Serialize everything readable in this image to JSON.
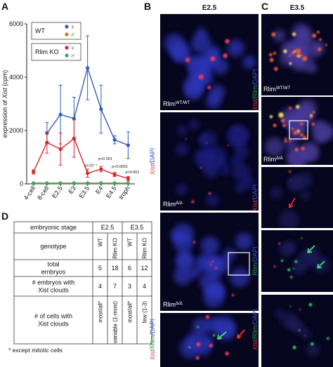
{
  "chart_data": {
    "type": "line",
    "panel": "A",
    "ylabel": [
      "expression of ",
      "Xist",
      " (cpm)"
    ],
    "categories": [
      "4-cell",
      "8-cell",
      "E2.5",
      "E3",
      "E3.5",
      "E4",
      "E4.5",
      "troph"
    ],
    "ylim": [
      0,
      6000
    ],
    "yticks": [
      0,
      2000,
      4000,
      6000
    ],
    "series": [
      {
        "name": "♀",
        "color": "#2e5fb8",
        "values": [
          null,
          1900,
          2600,
          2450,
          4350,
          2800,
          1650,
          1450
        ],
        "errors": [
          null,
          400,
          1100,
          800,
          1200,
          900,
          150,
          500
        ]
      },
      {
        "name": "♂",
        "color": "#c8762a",
        "values": [
          30,
          30,
          30,
          30,
          30,
          30,
          30,
          30
        ],
        "errors": [
          null,
          null,
          null,
          null,
          null,
          null,
          null,
          null
        ]
      },
      {
        "name": "♀",
        "color": "#d9262b",
        "values": [
          450,
          1550,
          1300,
          1700,
          400,
          550,
          350,
          200
        ],
        "errors": [
          80,
          400,
          600,
          700,
          150,
          100,
          80,
          80
        ]
      },
      {
        "name": "♂",
        "color": "#2fae5e",
        "values": [
          15,
          15,
          15,
          15,
          15,
          15,
          15,
          15
        ],
        "errors": [
          null,
          null,
          null,
          null,
          null,
          null,
          null,
          null
        ]
      }
    ],
    "legend": [
      {
        "label": "WT",
        "series": [
          0,
          1
        ]
      },
      {
        "label": "Rlim KO",
        "series": [
          2,
          3
        ]
      }
    ],
    "annotations": [
      {
        "text": "p<10⁻⁴",
        "category": 4,
        "value": 650
      },
      {
        "text": "p<0.001",
        "category": 5,
        "value": 900
      },
      {
        "text": "p<0.0001",
        "category": 6,
        "value": 600
      },
      {
        "text": "p<0.001",
        "category": 7,
        "value": 400
      }
    ]
  },
  "panel_b": {
    "label": "B",
    "title": "E2.5",
    "captions": [
      {
        "base": "Rlim",
        "sup": "WT/WT"
      },
      {
        "base": "Rlim",
        "sup": "Δ/Δ"
      },
      {
        "base": "Rlim",
        "sup": "Δ/Δ"
      }
    ],
    "side_labels": [
      [
        {
          "text": "Xist",
          "color": "#e03a3a"
        },
        {
          "text": "/DAPI",
          "color": "#3a4fc8"
        }
      ],
      [
        {
          "text": "Xist",
          "color": "#e03a3a"
        },
        {
          "text": "/Rlim",
          "color": "#2a9a4a"
        },
        {
          "text": "/DAPI",
          "color": "#3a4fc8"
        }
      ]
    ]
  },
  "panel_c": {
    "label": "C",
    "title": "E3.5",
    "captions": [
      {
        "base": "Rlim",
        "sup": "WT/WT"
      },
      {
        "base": "Rlim",
        "sup": "Δ/Δ"
      }
    ],
    "side_labels": [
      [
        {
          "text": "Xist",
          "color": "#e03a3a"
        },
        {
          "text": "/Rlim",
          "color": "#2a9a4a"
        },
        {
          "text": "/DAPI",
          "color": "#3a4fc8"
        }
      ],
      [
        {
          "text": "Xist",
          "color": "#e03a3a"
        },
        {
          "text": "/DAPI",
          "color": "#3a4fc8"
        }
      ],
      [
        {
          "text": "Rlim",
          "color": "#2a9a4a"
        },
        {
          "text": "/DAPI",
          "color": "#3a4fc8"
        }
      ],
      [
        {
          "text": "Xist",
          "color": "#e03a3a"
        },
        {
          "text": "/Rlim",
          "color": "#2a9a4a"
        },
        {
          "text": "/DAPI",
          "color": "#3a4fc8"
        }
      ]
    ]
  },
  "table": {
    "label": "D",
    "header": [
      "embryonic stage",
      "E2.5",
      "E3.5"
    ],
    "rows": [
      {
        "label": [
          "genotype"
        ],
        "cells": [
          "WT",
          "Rlim KO",
          "WT",
          "Rlim KO"
        ]
      },
      {
        "label": [
          "total",
          "embryos"
        ],
        "cells": [
          5,
          18,
          6,
          12
        ]
      },
      {
        "label": [
          "# embryos with",
          "Xist clouds"
        ],
        "cells": [
          4,
          7,
          3,
          4
        ]
      },
      {
        "label": [
          "# of cells with",
          "Xist clouds"
        ],
        "cells": [
          "most/all*",
          "variable (1-most)",
          "most/all*",
          "few (1-3)"
        ]
      }
    ],
    "footnote": "* except mitotic cells"
  }
}
